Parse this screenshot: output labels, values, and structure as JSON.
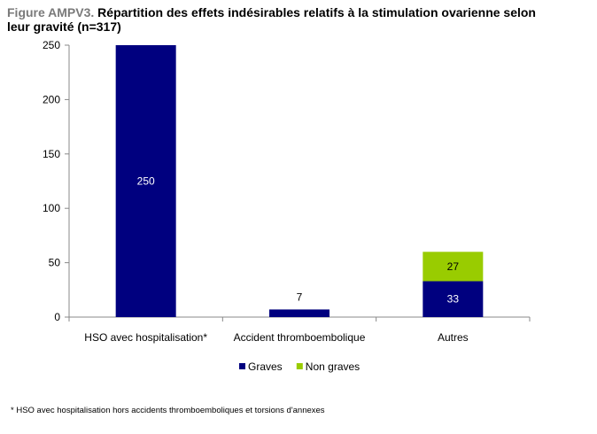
{
  "title": {
    "figure_label": "Figure AMPV3.",
    "text": "Répartition des effets indésirables relatifs à la stimulation ovarienne selon leur gravité (n=317)"
  },
  "footnote": "* HSO avec hospitalisation hors accidents thromboemboliques et torsions d'annexes",
  "colors": {
    "graves": "#00007f",
    "non_graves": "#99cc00",
    "axis": "#888888"
  },
  "chart_data": {
    "type": "bar",
    "stacked": true,
    "categories": [
      "HSO avec hospitalisation*",
      "Accident thromboembolique",
      "Autres"
    ],
    "series": [
      {
        "name": "Graves",
        "values": [
          250,
          7,
          33
        ]
      },
      {
        "name": "Non graves",
        "values": [
          0,
          0,
          27
        ]
      }
    ],
    "data_labels": [
      {
        "series": "Graves",
        "category": "HSO avec hospitalisation*",
        "text": "250",
        "position": "inside"
      },
      {
        "series": "Graves",
        "category": "Accident thromboembolique",
        "text": "7",
        "position": "above"
      },
      {
        "series": "Graves",
        "category": "Autres",
        "text": "33",
        "position": "inside"
      },
      {
        "series": "Non graves",
        "category": "Autres",
        "text": "27",
        "position": "inside"
      }
    ],
    "ylim": [
      0,
      250
    ],
    "yticks": [
      0,
      50,
      100,
      150,
      200,
      250
    ],
    "grid": false,
    "legend": "bottom"
  }
}
